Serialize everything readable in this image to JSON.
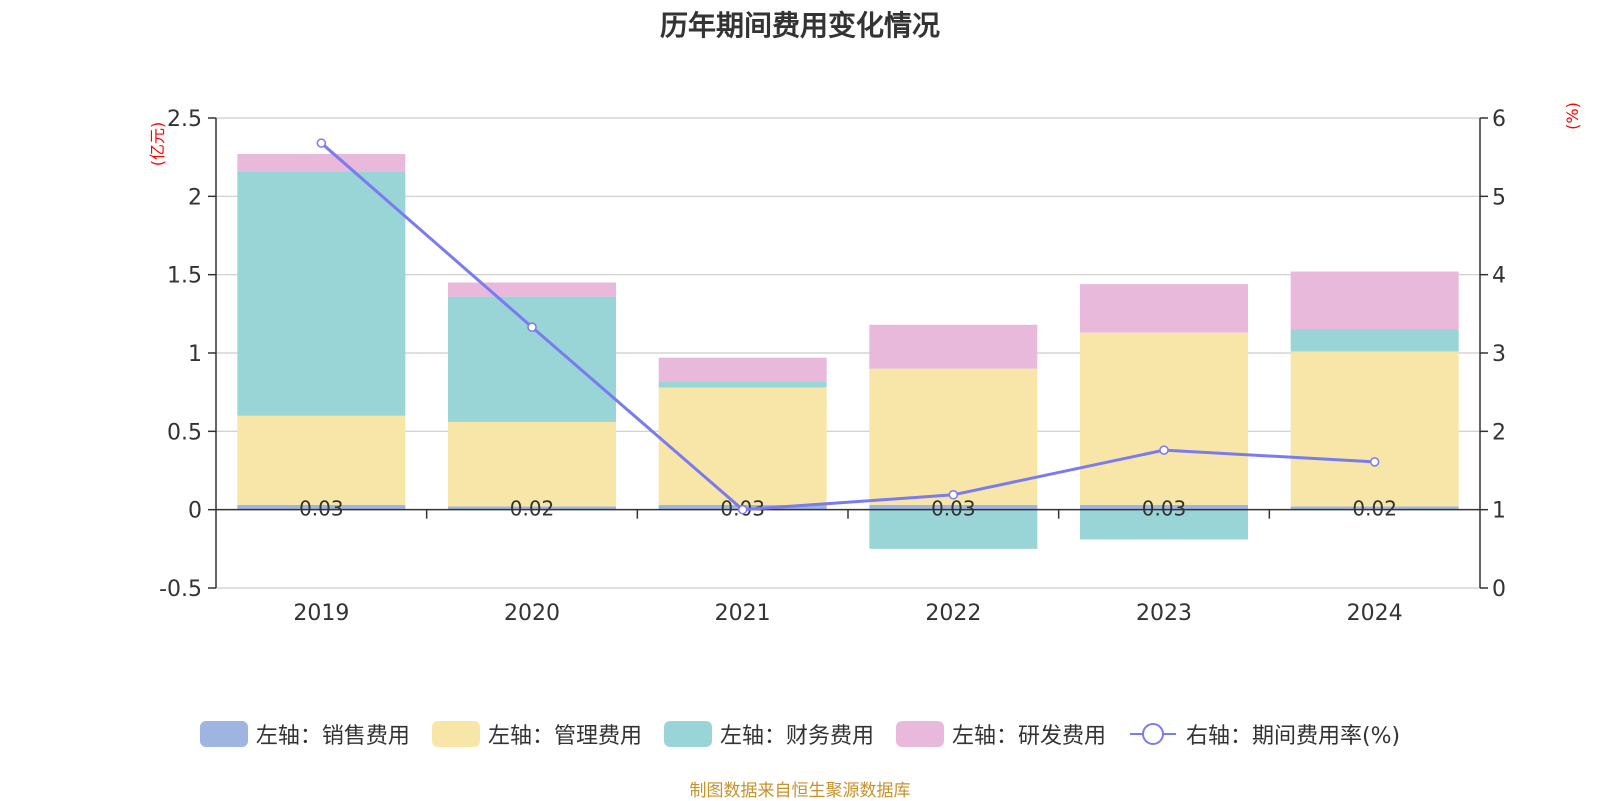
{
  "chart_data": {
    "type": "bar",
    "title": "历年期间费用变化情况",
    "categories": [
      "2019",
      "2020",
      "2021",
      "2022",
      "2023",
      "2024"
    ],
    "stacked": true,
    "left_axis": {
      "unit": "(亿元)",
      "ylim": [
        -0.5,
        2.5
      ],
      "ticks": [
        "-0.5",
        "0",
        "0.5",
        "1",
        "1.5",
        "2",
        "2.5"
      ]
    },
    "right_axis": {
      "unit": "(%)",
      "ylim": [
        0,
        6
      ],
      "ticks": [
        "0",
        "1",
        "2",
        "3",
        "4",
        "5",
        "6"
      ]
    },
    "series": [
      {
        "name": "左轴：销售费用",
        "axis": "left",
        "type": "bar",
        "color": "#9db5e0",
        "values": [
          0.03,
          0.02,
          0.03,
          0.03,
          0.03,
          0.02
        ],
        "labels": [
          "0.03",
          "0.02",
          "0.03",
          "0.03",
          "0.03",
          "0.02"
        ]
      },
      {
        "name": "左轴：管理费用",
        "axis": "left",
        "type": "bar",
        "color": "#f7e6a7",
        "values": [
          0.57,
          0.54,
          0.75,
          0.87,
          1.1,
          0.99
        ]
      },
      {
        "name": "左轴：财务费用",
        "axis": "left",
        "type": "bar",
        "color": "#99d4d6",
        "values": [
          1.56,
          0.8,
          0.04,
          -0.25,
          -0.19,
          0.14
        ]
      },
      {
        "name": "左轴：研发费用",
        "axis": "left",
        "type": "bar",
        "color": "#e8b9da",
        "values": [
          0.11,
          0.09,
          0.15,
          0.28,
          0.31,
          0.37
        ]
      },
      {
        "name": "右轴：期间费用率(%)",
        "axis": "right",
        "type": "line",
        "color": "#7b7bf0",
        "values": [
          5.68,
          3.33,
          1.0,
          1.19,
          1.76,
          1.61
        ]
      }
    ],
    "grid": true,
    "legend_position": "bottom"
  },
  "source": "制图数据来自恒生聚源数据库"
}
